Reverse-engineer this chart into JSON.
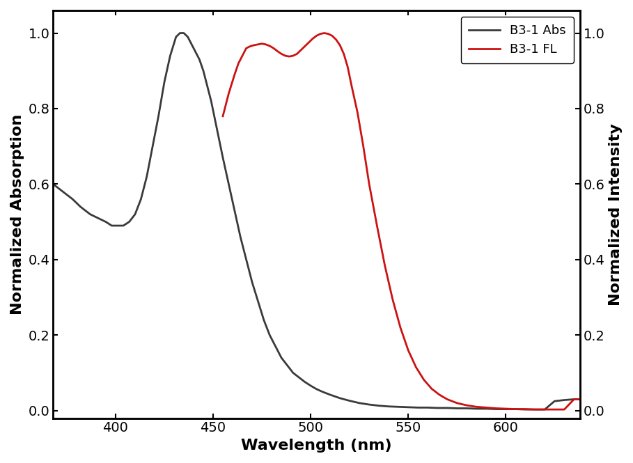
{
  "title": "",
  "xlabel": "Wavelength (nm)",
  "ylabel_left": "Normalized Absorption",
  "ylabel_right": "Normalized Intensity",
  "xlim": [
    368,
    638
  ],
  "ylim": [
    -0.02,
    1.06
  ],
  "abs_color": "#3a3a3a",
  "fl_color": "#cc1111",
  "abs_linewidth": 2.0,
  "fl_linewidth": 2.0,
  "legend_labels": [
    "B3-1 Abs",
    "B3-1 FL"
  ],
  "abs_x": [
    368,
    373,
    378,
    382,
    387,
    391,
    395,
    398,
    401,
    404,
    407,
    410,
    413,
    416,
    419,
    422,
    425,
    428,
    431,
    433,
    435,
    437,
    439,
    441,
    443,
    445,
    447,
    449,
    451,
    453,
    455,
    458,
    461,
    464,
    467,
    470,
    473,
    476,
    479,
    482,
    485,
    488,
    491,
    494,
    497,
    500,
    503,
    506,
    510,
    515,
    520,
    525,
    530,
    535,
    540,
    545,
    550,
    555,
    560,
    565,
    570,
    575,
    580,
    585,
    590,
    595,
    600,
    605,
    610,
    615,
    620,
    625,
    630,
    635,
    638
  ],
  "abs_y": [
    0.6,
    0.58,
    0.56,
    0.54,
    0.52,
    0.51,
    0.5,
    0.49,
    0.49,
    0.49,
    0.5,
    0.52,
    0.56,
    0.62,
    0.7,
    0.78,
    0.87,
    0.94,
    0.99,
    1.0,
    1.0,
    0.99,
    0.97,
    0.95,
    0.93,
    0.9,
    0.86,
    0.82,
    0.77,
    0.72,
    0.67,
    0.6,
    0.53,
    0.46,
    0.4,
    0.34,
    0.29,
    0.24,
    0.2,
    0.17,
    0.14,
    0.12,
    0.1,
    0.088,
    0.076,
    0.066,
    0.057,
    0.05,
    0.042,
    0.033,
    0.026,
    0.02,
    0.016,
    0.013,
    0.011,
    0.01,
    0.009,
    0.008,
    0.008,
    0.007,
    0.007,
    0.006,
    0.006,
    0.005,
    0.005,
    0.004,
    0.004,
    0.004,
    0.003,
    0.003,
    0.003,
    0.025,
    0.028,
    0.03,
    0.03
  ],
  "fl_x": [
    455,
    458,
    461,
    463,
    465,
    467,
    469,
    471,
    473,
    475,
    477,
    479,
    481,
    483,
    485,
    487,
    489,
    491,
    493,
    495,
    497,
    499,
    501,
    503,
    505,
    507,
    509,
    511,
    513,
    515,
    517,
    519,
    521,
    524,
    527,
    530,
    534,
    538,
    542,
    546,
    550,
    554,
    558,
    562,
    566,
    570,
    575,
    580,
    585,
    590,
    595,
    600,
    605,
    610,
    615,
    620,
    625,
    630,
    635,
    638
  ],
  "fl_y": [
    0.78,
    0.84,
    0.89,
    0.92,
    0.94,
    0.96,
    0.965,
    0.968,
    0.97,
    0.972,
    0.97,
    0.966,
    0.96,
    0.952,
    0.945,
    0.94,
    0.938,
    0.94,
    0.945,
    0.955,
    0.965,
    0.975,
    0.985,
    0.993,
    0.998,
    1.0,
    0.998,
    0.993,
    0.983,
    0.968,
    0.945,
    0.91,
    0.86,
    0.79,
    0.7,
    0.6,
    0.49,
    0.385,
    0.295,
    0.22,
    0.16,
    0.115,
    0.082,
    0.058,
    0.042,
    0.03,
    0.02,
    0.014,
    0.01,
    0.008,
    0.006,
    0.005,
    0.004,
    0.004,
    0.003,
    0.003,
    0.003,
    0.003,
    0.03,
    0.03
  ],
  "tick_fontsize": 14,
  "label_fontsize": 16,
  "legend_fontsize": 13,
  "xticks": [
    400,
    450,
    500,
    550,
    600
  ],
  "yticks": [
    0.0,
    0.2,
    0.4,
    0.6,
    0.8,
    1.0
  ]
}
